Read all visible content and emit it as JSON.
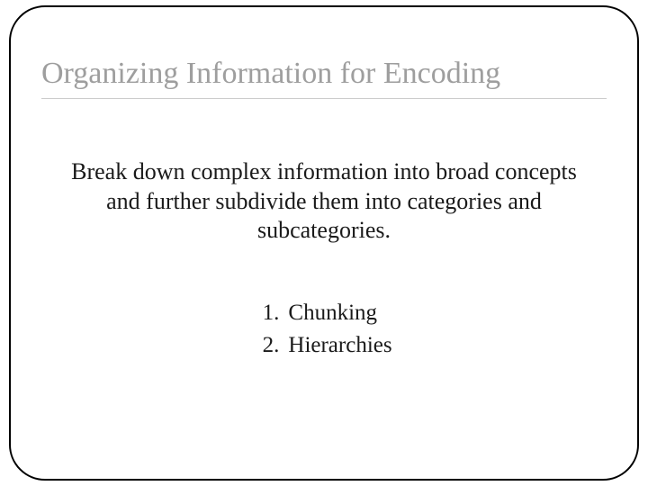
{
  "slide": {
    "title": "Organizing Information for Encoding",
    "body": "Break down complex information into broad concepts and further subdivide them into categories and subcategories.",
    "list": [
      {
        "num": "1.",
        "label": "Chunking"
      },
      {
        "num": "2.",
        "label": "Hierarchies"
      }
    ],
    "title_color": "#9e9e9e",
    "body_color": "#1a1a1a",
    "frame_color": "#000000",
    "background": "#ffffff",
    "title_fontsize": 34,
    "body_fontsize": 26,
    "list_fontsize": 25
  }
}
